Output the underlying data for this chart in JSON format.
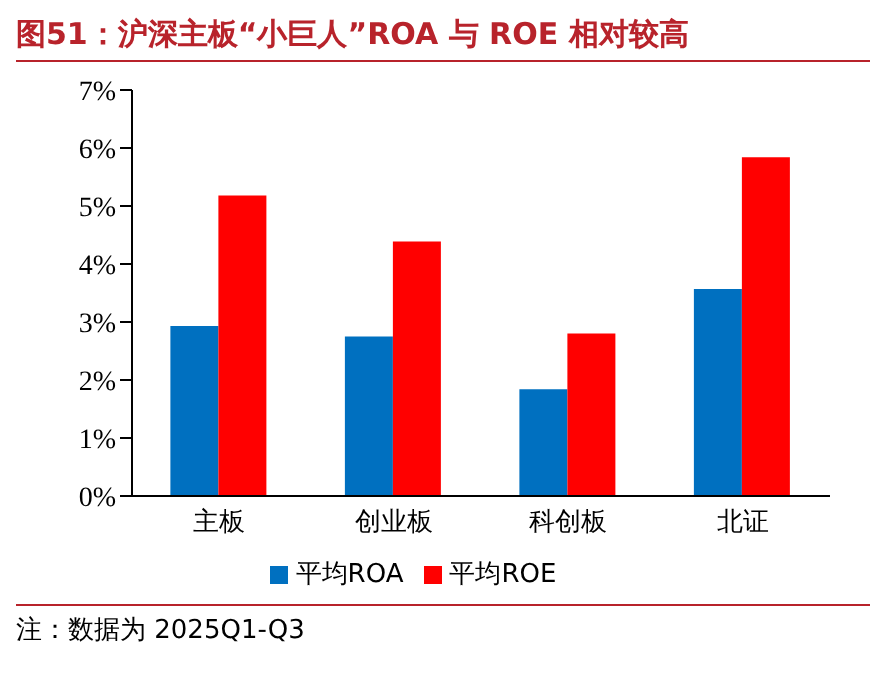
{
  "chart_data": {
    "type": "bar",
    "title": "图51：沪深主板“小巨人”ROA 与 ROE 相对较高",
    "categories": [
      "主板",
      "创业板",
      "科创板",
      "北证"
    ],
    "series": [
      {
        "name": "平均ROA",
        "color": "#0070c0",
        "values": [
          2.93,
          2.75,
          1.84,
          3.57
        ]
      },
      {
        "name": "平均ROE",
        "color": "#ff0000",
        "values": [
          5.18,
          4.39,
          2.8,
          5.84
        ]
      }
    ],
    "ylim": [
      0,
      7
    ],
    "yticks": [
      {
        "value": 0,
        "label": "0%"
      },
      {
        "value": 1,
        "label": "1%"
      },
      {
        "value": 2,
        "label": "2%"
      },
      {
        "value": 3,
        "label": "3%"
      },
      {
        "value": 4,
        "label": "4%"
      },
      {
        "value": 5,
        "label": "5%"
      },
      {
        "value": 6,
        "label": "6%"
      },
      {
        "value": 7,
        "label": "7%"
      }
    ],
    "grid": false,
    "legend": "bottom",
    "annotations": [
      "注：数据为 2025Q1-Q3"
    ]
  }
}
